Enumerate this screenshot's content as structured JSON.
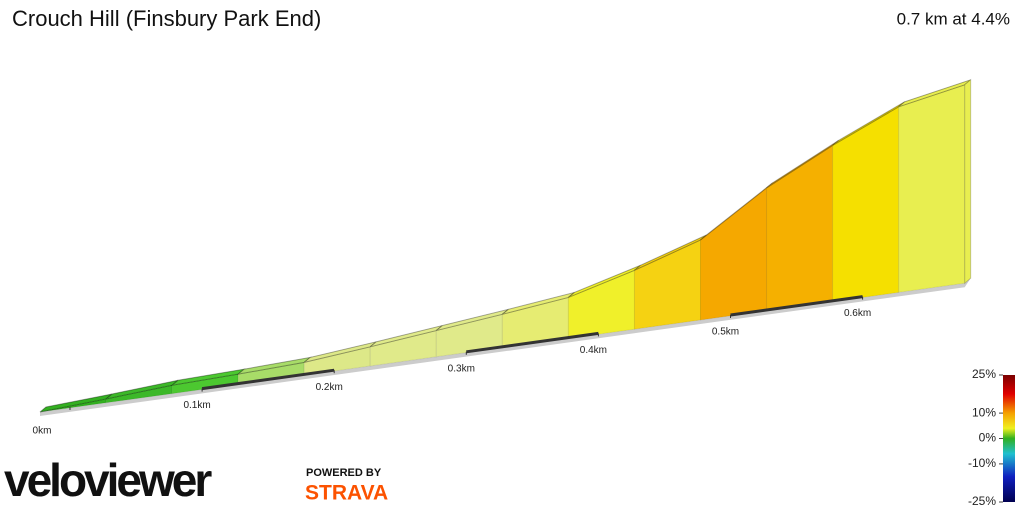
{
  "chart_data": {
    "type": "elevation-profile",
    "title": "Crouch Hill (Finsbury Park End)",
    "subtitle": "0.7 km at 4.4%",
    "x": [
      0,
      0.05,
      0.1,
      0.15,
      0.2,
      0.25,
      0.3,
      0.35,
      0.4,
      0.45,
      0.5,
      0.55,
      0.6,
      0.65,
      0.7
    ],
    "values": [
      0,
      0.6,
      1.3,
      1.6,
      2.0,
      3.0,
      4.1,
      5.2,
      6.4,
      9.2,
      12.5,
      19.2,
      24.4,
      29.0,
      31.0
    ],
    "segment_colors": [
      "#33b020",
      "#3cb828",
      "#4cc830",
      "#a8dc68",
      "#dde888",
      "#e0ea8a",
      "#e0ea8a",
      "#e6ec72",
      "#f0f02a",
      "#f5d212",
      "#f5a800",
      "#f5b000",
      "#f5e000",
      "#e8ee50"
    ],
    "xticks": [
      {
        "value": 0,
        "label": "0km"
      },
      {
        "value": 0.1,
        "label": "0.1km"
      },
      {
        "value": 0.2,
        "label": "0.2km"
      },
      {
        "value": 0.3,
        "label": "0.3km"
      },
      {
        "value": 0.4,
        "label": "0.4km"
      },
      {
        "value": 0.5,
        "label": "0.5km"
      },
      {
        "value": 0.6,
        "label": "0.6km"
      }
    ],
    "color_scale": {
      "clim": [
        -25,
        25
      ],
      "ticks": [
        {
          "value": 25,
          "label": "25%"
        },
        {
          "value": 10,
          "label": "10%"
        },
        {
          "value": 0,
          "label": "0%"
        },
        {
          "value": -10,
          "label": "-10%"
        },
        {
          "value": -25,
          "label": "-25%"
        }
      ]
    }
  },
  "branding": {
    "logo": "veloviewer",
    "powered": "POWERED BY",
    "strava": "STRAVA"
  }
}
